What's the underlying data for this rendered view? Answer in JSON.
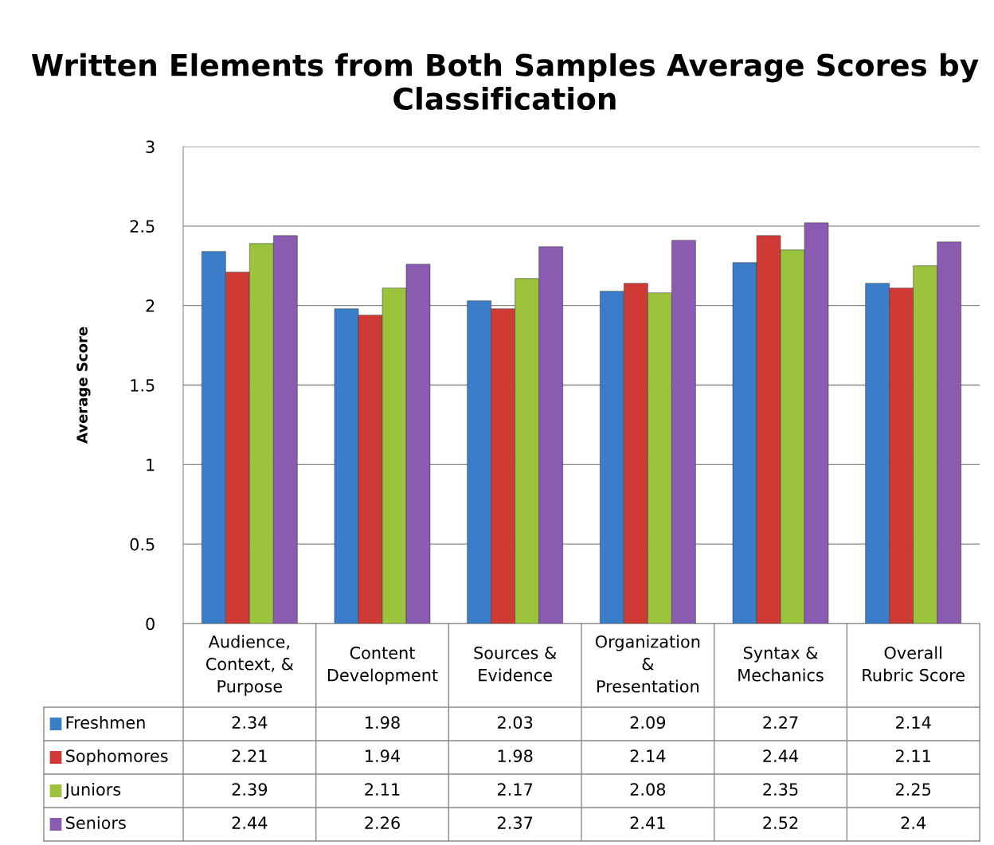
{
  "chart_data": {
    "type": "bar",
    "title": "Written Elements from Both Samples Average Scores by Classification",
    "ylabel": "Average Score",
    "categories": [
      "Audience,\nContext, &\nPurpose",
      "Content\nDevelopment",
      "Sources &\nEvidence",
      "Organization\n&\nPresentation",
      "Syntax &\nMechanics",
      "Overall\nRubric Score"
    ],
    "series": [
      {
        "name": "Freshmen",
        "color": "#3a7dc9",
        "values": [
          2.34,
          1.98,
          2.03,
          2.09,
          2.27,
          2.14
        ]
      },
      {
        "name": "Sophomores",
        "color": "#d03a35",
        "values": [
          2.21,
          1.94,
          1.98,
          2.14,
          2.44,
          2.11
        ]
      },
      {
        "name": "Juniors",
        "color": "#9bc43c",
        "values": [
          2.39,
          2.11,
          2.17,
          2.08,
          2.35,
          2.25
        ]
      },
      {
        "name": "Seniors",
        "color": "#8a5bb0",
        "values": [
          2.44,
          2.26,
          2.37,
          2.41,
          2.52,
          2.4
        ]
      }
    ],
    "ylim": [
      0,
      3
    ],
    "yticks": [
      0,
      0.5,
      1,
      1.5,
      2,
      2.5,
      3
    ],
    "grid": "y",
    "data_labels": true,
    "legend": "bottom"
  }
}
